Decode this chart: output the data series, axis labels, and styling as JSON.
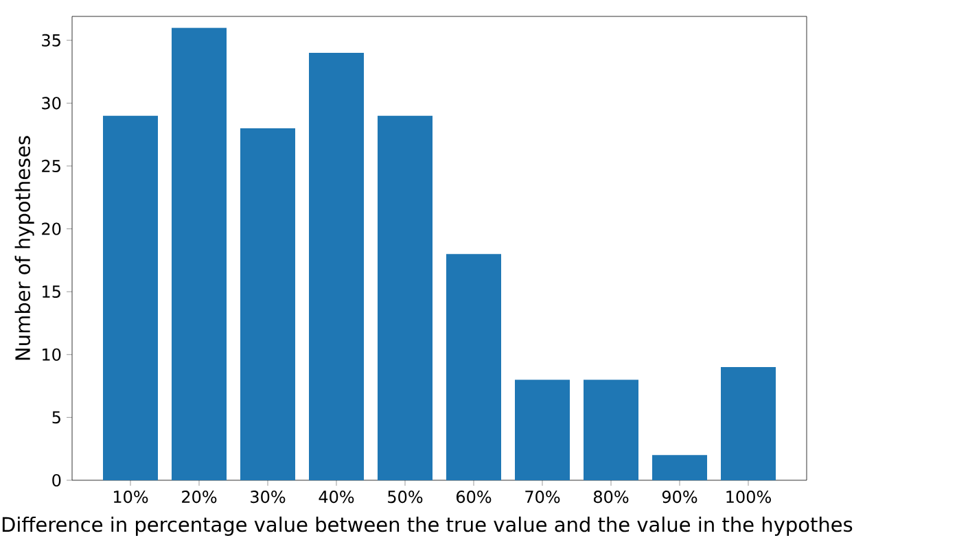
{
  "chart_data": {
    "type": "bar",
    "xlabel": "Difference in percentage value between the true value and the value in the hypothes",
    "ylabel": "Number of hypotheses",
    "categories": [
      "10%",
      "20%",
      "30%",
      "40%",
      "50%",
      "60%",
      "70%",
      "80%",
      "90%",
      "100%"
    ],
    "values": [
      29,
      36,
      28,
      34,
      29,
      18,
      8,
      8,
      2,
      9
    ],
    "color": "#1f77b4",
    "ylim": [
      0,
      36.9
    ],
    "yticks": [
      0,
      5,
      10,
      15,
      20,
      25,
      30,
      35
    ]
  }
}
